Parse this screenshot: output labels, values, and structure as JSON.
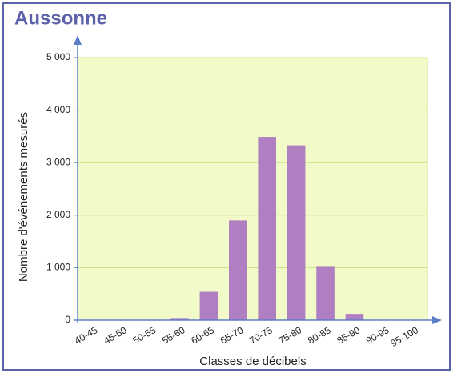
{
  "chart_data": {
    "type": "bar",
    "title": "Aussonne",
    "x_label": "Classes de décibels",
    "y_label": "Nombre d'événements mesurés",
    "categories": [
      "40-45",
      "45-50",
      "50-55",
      "55-60",
      "60-65",
      "65-70",
      "70-75",
      "75-80",
      "80-85",
      "85-90",
      "90-95",
      "95-100"
    ],
    "values": [
      0,
      0,
      0,
      40,
      540,
      1900,
      3490,
      3330,
      1030,
      120,
      0,
      0
    ],
    "color": "#b07fc2",
    "ylim": [
      0,
      5000
    ],
    "yticks": [
      0,
      {
        "value": 1000,
        "label": "1 000"
      },
      {
        "value": 2000,
        "label": "2 000"
      },
      {
        "value": 3000,
        "label": "3 000"
      },
      {
        "value": 4000,
        "label": "4 000"
      },
      {
        "value": 5000,
        "label": "5 000"
      }
    ],
    "grid": true
  }
}
